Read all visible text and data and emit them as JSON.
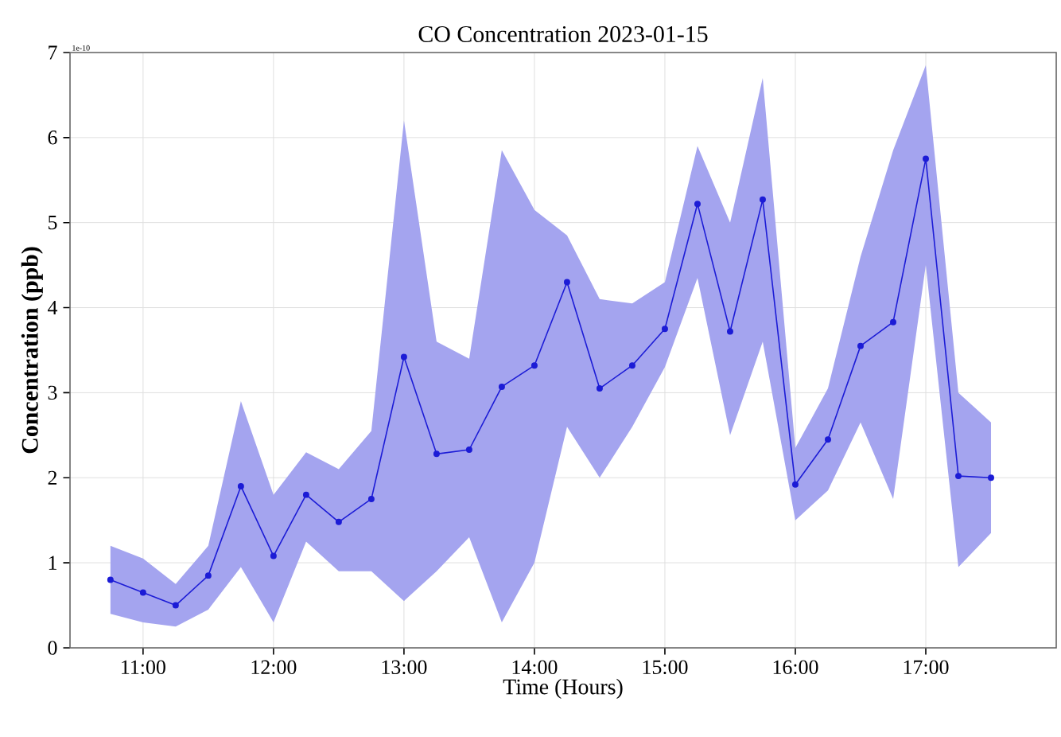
{
  "chart_data": {
    "type": "line",
    "title": "CO Concentration 2023-01-15",
    "xlabel": "Time (Hours)",
    "ylabel": "Concentration (ppb)",
    "annotations": [
      "1e-10"
    ],
    "x": [
      10.75,
      11.0,
      11.25,
      11.5,
      11.75,
      12.0,
      12.25,
      12.5,
      12.75,
      13.0,
      13.25,
      13.5,
      13.75,
      14.0,
      14.25,
      14.5,
      14.75,
      15.0,
      15.25,
      15.5,
      15.75,
      16.0,
      16.25,
      16.5,
      16.75,
      17.0,
      17.25,
      17.5
    ],
    "series": [
      {
        "color": "#1c1cd6",
        "values": [
          0.8,
          0.65,
          0.5,
          0.85,
          1.9,
          1.08,
          1.8,
          1.48,
          1.75,
          3.42,
          2.28,
          2.33,
          3.07,
          3.32,
          4.3,
          3.05,
          3.32,
          3.75,
          5.22,
          3.72,
          5.27,
          1.92,
          2.45,
          3.55,
          3.83,
          5.75,
          2.02,
          2.0
        ],
        "lower": [
          0.4,
          0.3,
          0.25,
          0.45,
          0.95,
          0.3,
          1.25,
          0.9,
          0.9,
          0.55,
          0.9,
          1.3,
          0.3,
          1.0,
          2.6,
          2.0,
          2.6,
          3.3,
          4.35,
          2.5,
          3.6,
          1.5,
          1.85,
          2.65,
          1.75,
          4.5,
          0.95,
          1.35
        ],
        "upper": [
          1.2,
          1.05,
          0.75,
          1.2,
          2.9,
          1.8,
          2.3,
          2.1,
          2.55,
          6.2,
          3.6,
          3.4,
          5.85,
          5.15,
          4.85,
          4.1,
          4.05,
          4.3,
          5.9,
          5.0,
          6.7,
          2.35,
          3.05,
          4.6,
          5.85,
          6.85,
          3.0,
          2.65
        ]
      }
    ],
    "xlim": [
      10.44,
      18.0
    ],
    "ylim": [
      0,
      7
    ],
    "xticks": [
      {
        "value": 11,
        "label": "11:00"
      },
      {
        "value": 12,
        "label": "12:00"
      },
      {
        "value": 13,
        "label": "13:00"
      },
      {
        "value": 14,
        "label": "14:00"
      },
      {
        "value": 15,
        "label": "15:00"
      },
      {
        "value": 16,
        "label": "16:00"
      },
      {
        "value": 17,
        "label": "17:00"
      }
    ],
    "yticks": [
      0,
      1,
      2,
      3,
      4,
      5,
      6,
      7
    ],
    "grid": true,
    "marker": "circle",
    "line_style": "solid"
  }
}
